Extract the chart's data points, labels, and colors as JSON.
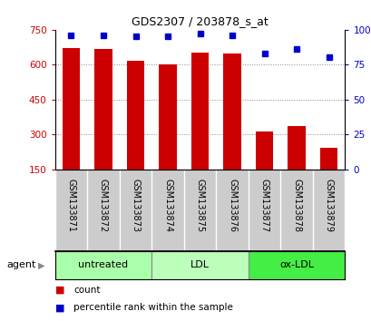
{
  "title": "GDS2307 / 203878_s_at",
  "samples": [
    "GSM133871",
    "GSM133872",
    "GSM133873",
    "GSM133874",
    "GSM133875",
    "GSM133876",
    "GSM133877",
    "GSM133878",
    "GSM133879"
  ],
  "counts": [
    670,
    665,
    615,
    600,
    650,
    648,
    310,
    335,
    240
  ],
  "percentiles": [
    96,
    96,
    95,
    95,
    97,
    96,
    83,
    86,
    80
  ],
  "groups": [
    {
      "label": "untreated",
      "indices": [
        0,
        1,
        2
      ],
      "color": "#aaffaa"
    },
    {
      "label": "LDL",
      "indices": [
        3,
        4,
        5
      ],
      "color": "#bbffbb"
    },
    {
      "label": "ox-LDL",
      "indices": [
        6,
        7,
        8
      ],
      "color": "#44ee44"
    }
  ],
  "bar_color": "#cc0000",
  "dot_color": "#0000cc",
  "ylim_left": [
    150,
    750
  ],
  "ylim_right": [
    0,
    100
  ],
  "yticks_left": [
    150,
    300,
    450,
    600,
    750
  ],
  "yticks_right": [
    0,
    25,
    50,
    75,
    100
  ],
  "left_tick_color": "#cc0000",
  "right_tick_color": "#0000cc",
  "grid_color": "#888888",
  "bg_color": "#ffffff",
  "sample_box_color": "#cccccc",
  "agent_label": "agent",
  "legend_count_label": "count",
  "legend_pct_label": "percentile rank within the sample",
  "figsize": [
    4.1,
    3.54
  ],
  "dpi": 100
}
